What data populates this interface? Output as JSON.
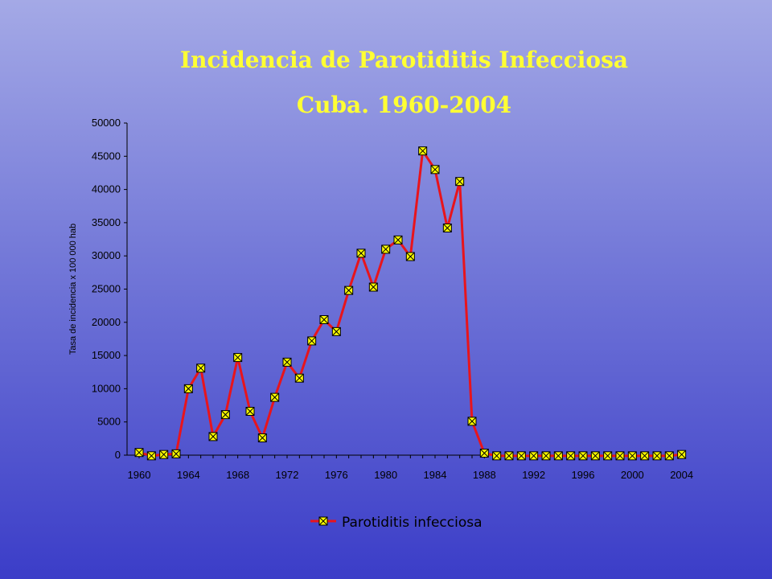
{
  "chart_data": {
    "type": "line",
    "title": "Incidencia de Parotiditis Infecciosa",
    "subtitle": "Cuba. 1960-2004",
    "ylabel": "Tasa de incidencia x 100 000 hab",
    "xlabel": "",
    "ylim": [
      0,
      50000
    ],
    "yticks": [
      "0",
      "5000",
      "10000",
      "15000",
      "20000",
      "25000",
      "30000",
      "35000",
      "40000",
      "45000",
      "50000"
    ],
    "xticks": [
      "1960",
      "1964",
      "1968",
      "1972",
      "1976",
      "1980",
      "1984",
      "1988",
      "1992",
      "1996",
      "2000",
      "2004"
    ],
    "x": [
      1960,
      1961,
      1962,
      1963,
      1964,
      1965,
      1966,
      1967,
      1968,
      1969,
      1970,
      1971,
      1972,
      1973,
      1974,
      1975,
      1976,
      1977,
      1978,
      1979,
      1980,
      1981,
      1982,
      1983,
      1984,
      1985,
      1986,
      1987,
      1988,
      1989,
      1990,
      1991,
      1992,
      1993,
      1994,
      1995,
      1996,
      1997,
      1998,
      1999,
      2000,
      2001,
      2002,
      2003,
      2004
    ],
    "series": [
      {
        "name": "Parotiditis infecciosa",
        "color": "#e8141c",
        "marker_color": "#ffff00",
        "values": [
          400,
          -100,
          100,
          200,
          10000,
          13100,
          2800,
          6100,
          14700,
          6600,
          2600,
          8700,
          14000,
          11600,
          17200,
          20400,
          18600,
          24800,
          30400,
          25300,
          31000,
          32400,
          29900,
          45800,
          43000,
          34200,
          41200,
          5100,
          300,
          -100,
          -100,
          -100,
          -100,
          -100,
          -100,
          -100,
          -100,
          -100,
          -100,
          -100,
          -100,
          -100,
          -100,
          -100,
          100
        ]
      }
    ],
    "legend_position": "bottom",
    "grid": false
  }
}
